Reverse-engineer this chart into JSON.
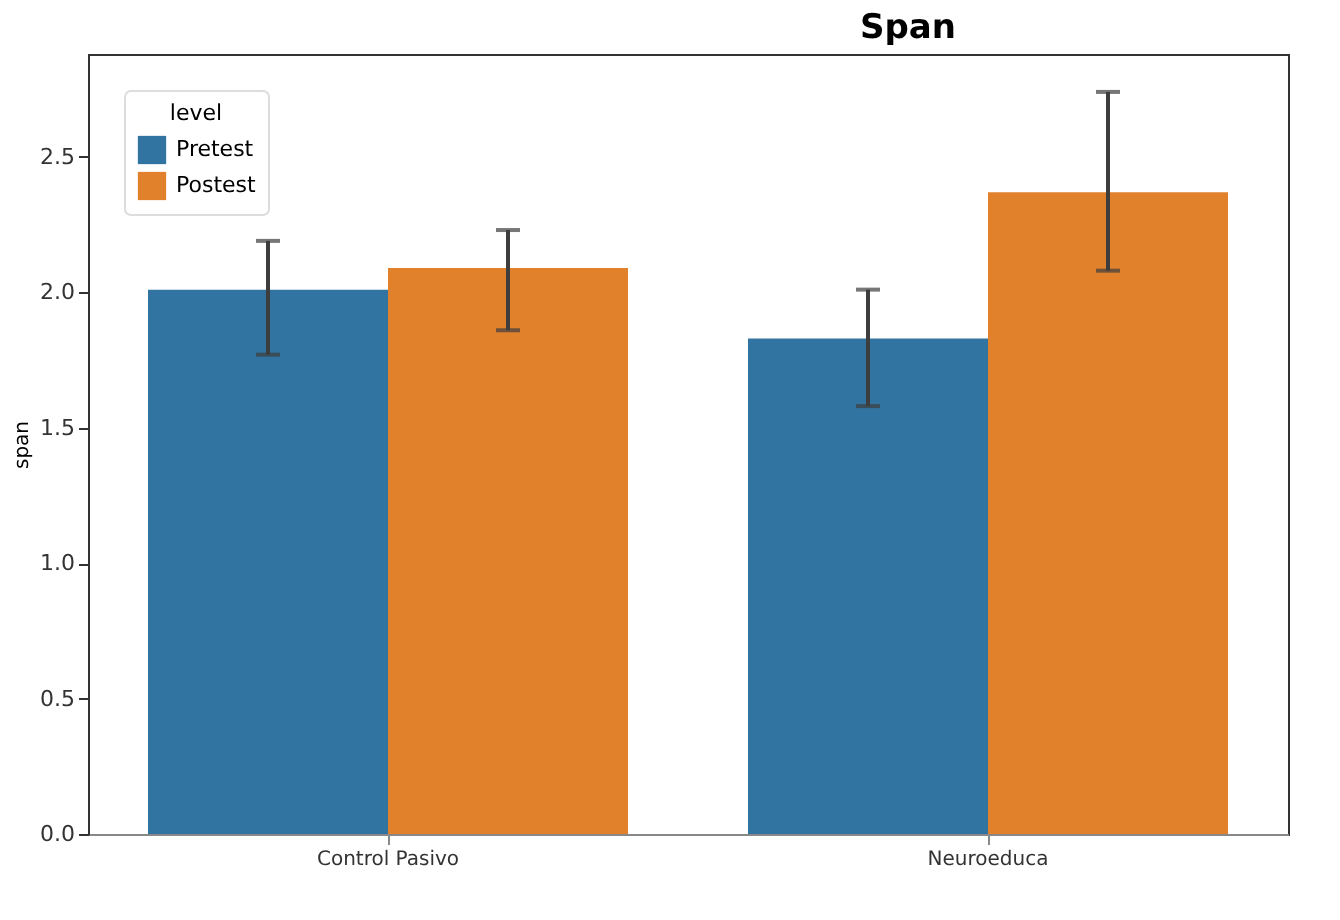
{
  "chart_data": {
    "type": "bar",
    "title": "Span",
    "ylabel": "span",
    "legend_title": "level",
    "categories": [
      "Control Pasivo",
      "Neuroeduca"
    ],
    "series": [
      {
        "name": "Pretest",
        "color": "#3274a1",
        "values": [
          2.01,
          1.83
        ],
        "errors": [
          [
            1.77,
            2.19
          ],
          [
            1.58,
            2.01
          ]
        ]
      },
      {
        "name": "Postest",
        "color": "#e1812c",
        "values": [
          2.09,
          2.37
        ],
        "errors": [
          [
            1.86,
            2.23
          ],
          [
            2.08,
            2.74
          ]
        ]
      }
    ],
    "ylim": [
      0,
      2.88
    ],
    "yticks": [
      {
        "value": 0,
        "label": "0.0"
      },
      {
        "value": 0.5,
        "label": "0.5"
      },
      {
        "value": 1,
        "label": "1.0"
      },
      {
        "value": 1.5,
        "label": "1.5"
      },
      {
        "value": 2,
        "label": "2.0"
      },
      {
        "value": 2.5,
        "label": "2.5"
      }
    ],
    "legend": "top left",
    "grid": false
  }
}
